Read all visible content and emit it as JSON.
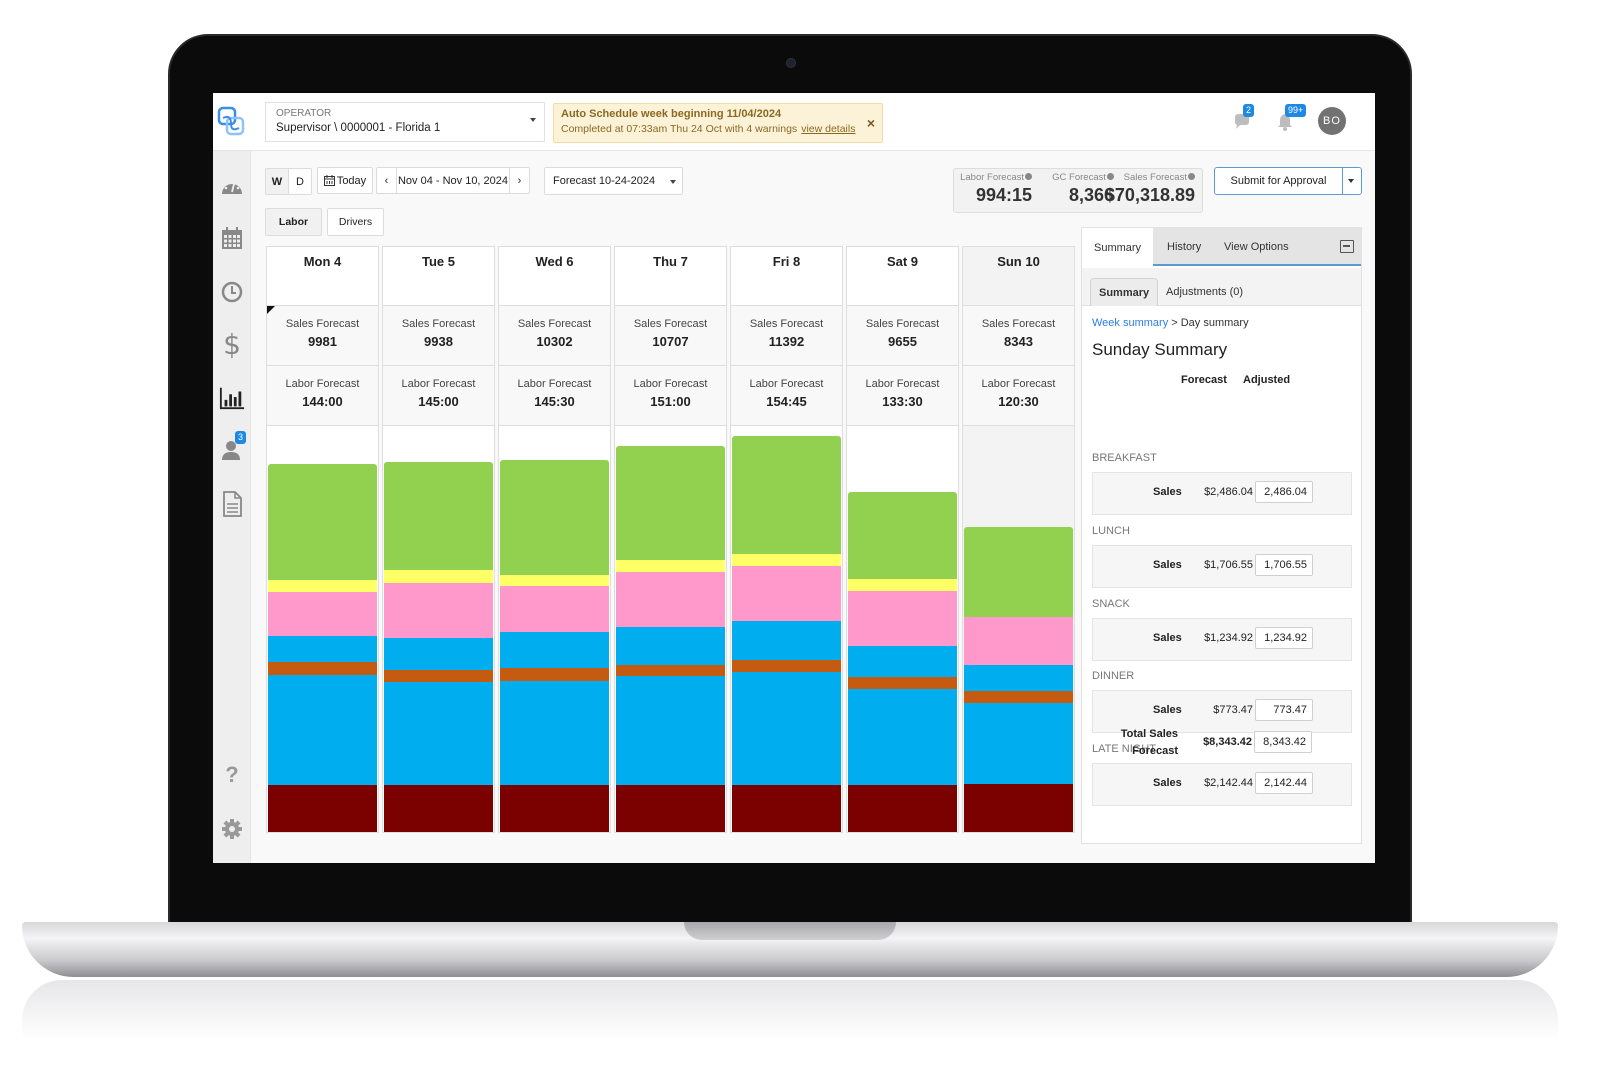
{
  "topbar": {
    "operator_label": "OPERATOR",
    "operator_value": "Supervisor \\ 0000001 - Florida 1",
    "alert_title": "Auto Schedule week beginning 11/04/2024",
    "alert_body": "Completed at 07:33am Thu 24 Oct with 4 warnings",
    "alert_link": "view details",
    "alert_close": "×",
    "messages_badge": "2",
    "notifications_badge": "99+",
    "avatar_initials": "BO"
  },
  "sidebar": {
    "items": [
      {
        "name": "dashboard",
        "icon": "gauge-icon"
      },
      {
        "name": "schedule",
        "icon": "calendar-icon"
      },
      {
        "name": "time",
        "icon": "clock-icon"
      },
      {
        "name": "sales",
        "icon": "dollar-icon"
      },
      {
        "name": "forecast",
        "icon": "bar-chart-icon",
        "active": true
      },
      {
        "name": "employees",
        "icon": "person-icon",
        "badge": "3"
      },
      {
        "name": "reports",
        "icon": "document-icon"
      },
      {
        "name": "help",
        "icon": "question-icon"
      },
      {
        "name": "settings",
        "icon": "gear-icon"
      }
    ],
    "employees_badge": "3",
    "help_glyph": "?"
  },
  "toolbar": {
    "view_week": "W",
    "view_day": "D",
    "today": "Today",
    "prev": "‹",
    "date_range": "Nov 04 - Nov 10, 2024",
    "next": "›",
    "forecast_select": "Forecast 10-24-2024",
    "tab_labor": "Labor",
    "tab_drivers": "Drivers",
    "submit": "Submit for Approval"
  },
  "kpis": {
    "labor_label": "Labor Forecast",
    "labor_value": "994:15",
    "gc_label": "GC Forecast",
    "gc_value": "8,366",
    "sales_label": "Sales Forecast",
    "sales_value": "$70,318.89"
  },
  "days": [
    {
      "label": "Mon 4",
      "sales_label": "Sales Forecast",
      "sales": "9981",
      "labor_label": "Labor Forecast",
      "labor": "144:00"
    },
    {
      "label": "Tue 5",
      "sales_label": "Sales Forecast",
      "sales": "9938",
      "labor_label": "Labor Forecast",
      "labor": "145:00"
    },
    {
      "label": "Wed 6",
      "sales_label": "Sales Forecast",
      "sales": "10302",
      "labor_label": "Labor Forecast",
      "labor": "145:30"
    },
    {
      "label": "Thu 7",
      "sales_label": "Sales Forecast",
      "sales": "10707",
      "labor_label": "Labor Forecast",
      "labor": "151:00"
    },
    {
      "label": "Fri 8",
      "sales_label": "Sales Forecast",
      "sales": "11392",
      "labor_label": "Labor Forecast",
      "labor": "154:45"
    },
    {
      "label": "Sat 9",
      "sales_label": "Sales Forecast",
      "sales": "9655",
      "labor_label": "Labor Forecast",
      "labor": "133:30"
    },
    {
      "label": "Sun 10",
      "sales_label": "Sales Forecast",
      "sales": "8343",
      "labor_label": "Labor Forecast",
      "labor": "120:30"
    }
  ],
  "chart_data": {
    "type": "bar",
    "stacked": true,
    "title": "",
    "xlabel": "",
    "ylabel": "",
    "categories": [
      "Mon 4",
      "Tue 5",
      "Wed 6",
      "Thu 7",
      "Fri 8",
      "Sat 9",
      "Sun 10"
    ],
    "colors": {
      "maroon": "#7b0000",
      "blue_lower": "#00aeef",
      "orange": "#c55a11",
      "blue_upper": "#00aeef",
      "pink": "#ff99cc",
      "yellow": "#ffff66",
      "green": "#92d050"
    },
    "series_order_bottom_to_top": [
      "maroon",
      "blue_lower",
      "orange",
      "blue_upper",
      "pink",
      "yellow",
      "green"
    ],
    "series_pixel_heights": [
      {
        "name": "maroon",
        "values": [
          47,
          47,
          47,
          47,
          47,
          47,
          48
        ]
      },
      {
        "name": "blue_lower",
        "values": [
          110,
          103,
          104,
          109,
          113,
          96,
          81
        ]
      },
      {
        "name": "orange",
        "values": [
          13,
          12,
          13,
          11,
          12,
          12,
          12
        ]
      },
      {
        "name": "blue_upper",
        "values": [
          26,
          32,
          36,
          38,
          39,
          31,
          26
        ]
      },
      {
        "name": "pink",
        "values": [
          44,
          55,
          46,
          55,
          55,
          55,
          48
        ]
      },
      {
        "name": "yellow",
        "values": [
          12,
          13,
          11,
          12,
          12,
          12,
          0
        ]
      },
      {
        "name": "green",
        "values": [
          116,
          108,
          115,
          114,
          118,
          87,
          90
        ]
      }
    ],
    "totals_label": "Sales Forecast",
    "totals": [
      9981,
      9938,
      10302,
      10707,
      11392,
      9655,
      8343
    ],
    "grid": false,
    "legend": "none"
  },
  "panel": {
    "tab_summary": "Summary",
    "tab_history": "History",
    "tab_view_options": "View Options",
    "subtab_summary": "Summary",
    "subtab_adjustments": "Adjustments (0)",
    "breadcrumb_link": "Week summary",
    "breadcrumb_rest": " > Day summary",
    "title": "Sunday Summary",
    "col_forecast": "Forecast",
    "col_adjusted": "Adjusted",
    "meals": [
      {
        "label": "BREAKFAST",
        "row_label": "Sales",
        "forecast": "$2,486.04",
        "adjusted": "2,486.04"
      },
      {
        "label": "LUNCH",
        "row_label": "Sales",
        "forecast": "$1,706.55",
        "adjusted": "1,706.55"
      },
      {
        "label": "SNACK",
        "row_label": "Sales",
        "forecast": "$1,234.92",
        "adjusted": "1,234.92"
      },
      {
        "label": "DINNER",
        "row_label": "Sales",
        "forecast": "$773.47",
        "adjusted": "773.47"
      },
      {
        "label": "LATE NIGHT",
        "row_label": "Sales",
        "forecast": "$2,142.44",
        "adjusted": "2,142.44"
      }
    ],
    "total_label_1": "Total Sales",
    "total_label_2": "Forecast",
    "total_forecast": "$8,343.42",
    "total_adjusted": "8,343.42"
  }
}
